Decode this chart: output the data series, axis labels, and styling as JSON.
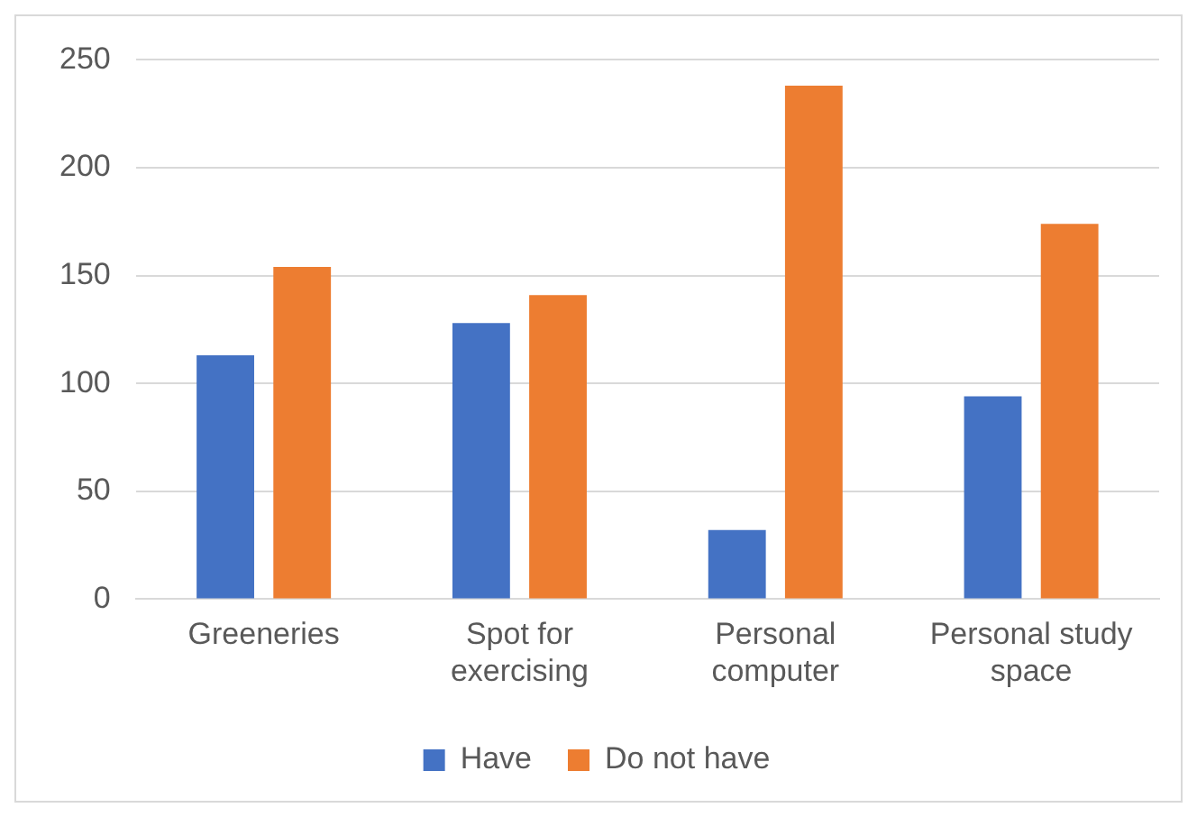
{
  "chart_data": {
    "type": "bar",
    "categories": [
      "Greeneries",
      "Spot for exercising",
      "Personal computer",
      "Personal study space"
    ],
    "series": [
      {
        "name": "Have",
        "color": "#4472c4",
        "values": [
          113,
          128,
          32,
          94
        ]
      },
      {
        "name": "Do not have",
        "color": "#ed7d31",
        "values": [
          154,
          141,
          238,
          174
        ]
      }
    ],
    "ylim": [
      0,
      250
    ],
    "yticks": [
      0,
      50,
      100,
      150,
      200,
      250
    ],
    "grid": "y",
    "legend": "bottom"
  }
}
